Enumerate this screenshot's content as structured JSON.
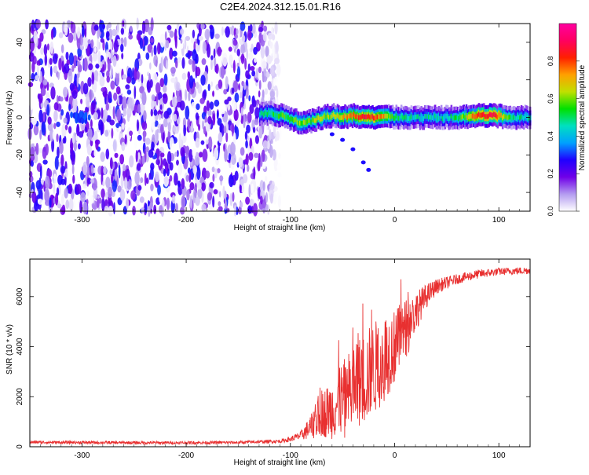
{
  "title": "C2E4.2024.312.15.01.R16",
  "chart_data": [
    {
      "type": "heatmap",
      "xlabel": "Height of straight line (km)",
      "ylabel": "Frequency (Hz)",
      "xlim": [
        -350,
        130
      ],
      "ylim": [
        -50,
        50
      ],
      "xticks": [
        -300,
        -200,
        -100,
        0,
        100
      ],
      "yticks": [
        -40,
        -20,
        0,
        20,
        40
      ],
      "colorbar": {
        "label": "Normalized spectral amplitude",
        "range": [
          0,
          1
        ],
        "ticks": [
          0.0,
          0.2,
          0.4,
          0.6,
          0.8
        ],
        "tick_labels": [
          "0.0",
          "0.2",
          "0.4",
          "0.6",
          "0.8"
        ],
        "colormap": [
          "#ffffff",
          "#b49cf0",
          "#7000e8",
          "#2000ff",
          "#00a0ff",
          "#00e0c0",
          "#00e000",
          "#c0e000",
          "#ffa000",
          "#ff2000",
          "#ff0060",
          "#ff00a0"
        ]
      },
      "features": {
        "noise_region_x": [
          -350,
          -110
        ],
        "main_band": [
          [
            -130,
            2,
            0.45
          ],
          [
            -120,
            2,
            0.5
          ],
          [
            -110,
            1,
            0.55
          ],
          [
            -100,
            -1,
            0.55
          ],
          [
            -90,
            -3,
            0.6
          ],
          [
            -80,
            -2,
            0.6
          ],
          [
            -70,
            0,
            0.65
          ],
          [
            -60,
            1,
            0.6
          ],
          [
            -50,
            0,
            0.7
          ],
          [
            -40,
            1,
            0.75
          ],
          [
            -30,
            0,
            0.85
          ],
          [
            -20,
            0,
            0.8
          ],
          [
            -10,
            1,
            0.7
          ],
          [
            0,
            0,
            0.5
          ],
          [
            20,
            0,
            0.45
          ],
          [
            40,
            0,
            0.45
          ],
          [
            60,
            0,
            0.5
          ],
          [
            80,
            1,
            0.85
          ],
          [
            95,
            1,
            0.9
          ],
          [
            110,
            0,
            0.5
          ],
          [
            130,
            0,
            0.45
          ]
        ],
        "side_streak": [
          [
            -60,
            -9
          ],
          [
            -50,
            -12
          ],
          [
            -40,
            -17
          ],
          [
            -30,
            -24
          ],
          [
            -25,
            -28
          ]
        ]
      }
    },
    {
      "type": "line",
      "xlabel": "Height of straight line (km)",
      "ylabel": "SNR (10 * v/v)",
      "xlim": [
        -350,
        130
      ],
      "ylim": [
        0,
        7500
      ],
      "xticks": [
        -300,
        -200,
        -100,
        0,
        100
      ],
      "yticks": [
        0,
        2000,
        4000,
        6000
      ],
      "color": "#e83030",
      "envelope": [
        [
          -350,
          180,
          60
        ],
        [
          -300,
          170,
          60
        ],
        [
          -250,
          160,
          60
        ],
        [
          -200,
          160,
          60
        ],
        [
          -150,
          170,
          60
        ],
        [
          -110,
          220,
          70
        ],
        [
          -100,
          300,
          100
        ],
        [
          -90,
          450,
          180
        ],
        [
          -80,
          800,
          500
        ],
        [
          -70,
          1300,
          900
        ],
        [
          -60,
          1500,
          1200
        ],
        [
          -50,
          1900,
          1500
        ],
        [
          -40,
          2300,
          1800
        ],
        [
          -30,
          2700,
          1900
        ],
        [
          -20,
          3100,
          1900
        ],
        [
          -10,
          3600,
          1800
        ],
        [
          0,
          4000,
          1500
        ],
        [
          10,
          4700,
          1200
        ],
        [
          20,
          5400,
          800
        ],
        [
          30,
          6000,
          500
        ],
        [
          40,
          6400,
          300
        ],
        [
          60,
          6700,
          200
        ],
        [
          80,
          6900,
          180
        ],
        [
          100,
          7000,
          150
        ],
        [
          130,
          7050,
          150
        ]
      ]
    }
  ]
}
